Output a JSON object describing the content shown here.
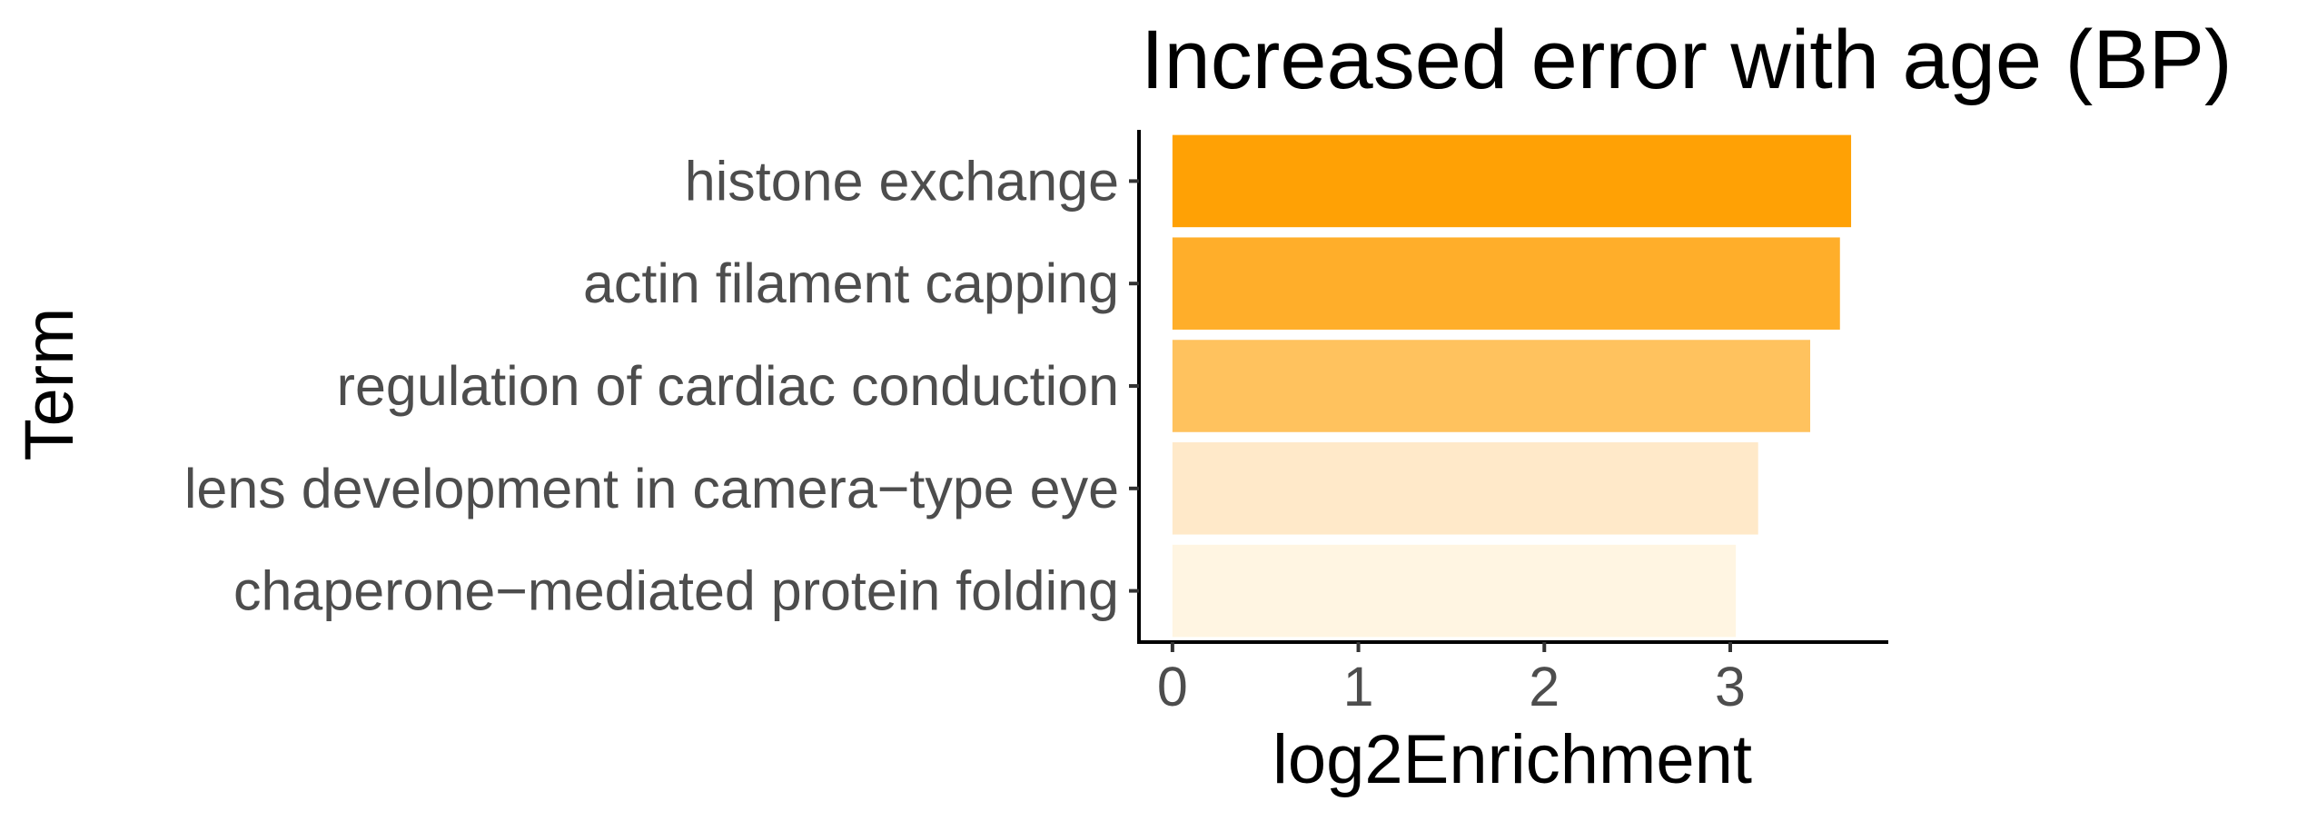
{
  "chart_data": {
    "type": "bar",
    "orientation": "horizontal",
    "title": "Increased error with age (BP)",
    "xlabel": "log2Enrichment",
    "ylabel": "Term",
    "categories": [
      "histone exchange",
      "actin filament capping",
      "regulation of cardiac conduction",
      "lens development in camera−type eye",
      "chaperone−mediated protein folding"
    ],
    "values": [
      3.65,
      3.59,
      3.43,
      3.15,
      3.03
    ],
    "bar_colors": [
      "#ffa105",
      "#ffae2a",
      "#ffc25e",
      "#ffe9c9",
      "#fff5e2"
    ],
    "xlim": [
      -0.18,
      3.85
    ],
    "xticks": [
      0,
      1,
      2,
      3
    ],
    "grid": false,
    "legend": "none"
  }
}
